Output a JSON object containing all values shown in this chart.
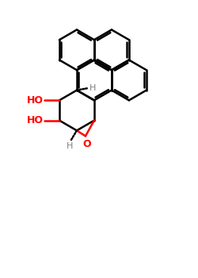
{
  "bg_color": "#ffffff",
  "bond_color": "#000000",
  "oh_color": "#ff0000",
  "o_color": "#ff0000",
  "h_color": "#808080",
  "lw": 1.8,
  "figsize": [
    2.5,
    3.5
  ],
  "dpi": 100,
  "xlim": [
    0.0,
    8.5
  ],
  "ylim": [
    -0.5,
    12.5
  ]
}
